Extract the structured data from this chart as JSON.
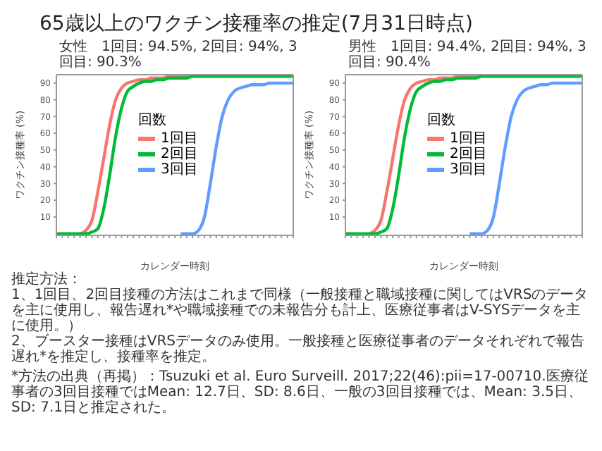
{
  "chart_data": [
    {
      "type": "other",
      "title": "65歳以上のワクチン接種率の推定(7月31日時点)"
    },
    {
      "type": "line",
      "title": "女性　1回目: 94.5%, 2回目: 94%, 3回目: 90.3%",
      "xlabel": "カレンダー時刻",
      "ylabel": "ワクチン接種率 (%)",
      "legend_title": "回数",
      "legend": "top left",
      "grid": false,
      "marker": "none",
      "line_style": "solid",
      "categories": [
        null,
        null,
        null,
        null,
        null,
        null,
        null,
        null,
        null,
        null,
        null,
        null,
        null,
        null,
        null,
        null,
        null,
        null,
        null,
        null,
        null,
        null,
        null,
        null,
        null,
        null,
        null,
        null,
        null,
        null,
        null,
        null,
        null,
        null,
        null,
        null,
        null,
        null,
        null,
        null,
        null
      ],
      "ylim": [
        -1,
        95
      ],
      "yticks": [
        10,
        20,
        30,
        40,
        50,
        60,
        70,
        80,
        90
      ],
      "series": [
        {
          "name": "1回目",
          "color": "#f8766d",
          "values": [
            null,
            null,
            null,
            null,
            0,
            2,
            8,
            25,
            45,
            65,
            80,
            87,
            90,
            91,
            92,
            92,
            93,
            93,
            93,
            94,
            94,
            94,
            94,
            94,
            null,
            null,
            null,
            null,
            null,
            null,
            null,
            null,
            null,
            null,
            null,
            null,
            null,
            null,
            null,
            null,
            null
          ]
        },
        {
          "name": "2回目",
          "color": "#00ba38",
          "values": [
            0,
            0,
            0,
            0,
            0,
            0,
            1,
            3,
            15,
            35,
            58,
            75,
            85,
            88,
            90,
            91,
            91,
            92,
            92,
            93,
            93,
            93,
            93,
            94,
            94,
            94,
            94,
            94,
            94,
            94,
            94,
            94,
            94,
            94,
            94,
            94,
            94,
            94,
            94,
            94,
            94
          ]
        },
        {
          "name": "3回目",
          "color": "#619cff",
          "values": [
            null,
            null,
            null,
            null,
            null,
            null,
            null,
            null,
            null,
            null,
            null,
            null,
            null,
            null,
            null,
            null,
            null,
            null,
            null,
            null,
            null,
            0,
            0,
            0,
            2,
            10,
            30,
            52,
            70,
            80,
            85,
            87,
            88,
            89,
            89,
            89,
            90,
            90,
            90,
            90,
            90
          ]
        }
      ]
    },
    {
      "type": "line",
      "title": "男性　1回目: 94.4%, 2回目: 94%, 3回目: 90.4%",
      "xlabel": "カレンダー時刻",
      "ylabel": "ワクチン接種率 (%)",
      "legend_title": "回数",
      "legend": "top left",
      "grid": false,
      "marker": "none",
      "line_style": "solid",
      "categories": [
        null,
        null,
        null,
        null,
        null,
        null,
        null,
        null,
        null,
        null,
        null,
        null,
        null,
        null,
        null,
        null,
        null,
        null,
        null,
        null,
        null,
        null,
        null,
        null,
        null,
        null,
        null,
        null,
        null,
        null,
        null,
        null,
        null,
        null,
        null,
        null,
        null,
        null,
        null,
        null,
        null
      ],
      "ylim": [
        -1,
        95
      ],
      "yticks": [
        10,
        20,
        30,
        40,
        50,
        60,
        70,
        80,
        90
      ],
      "series": [
        {
          "name": "1回目",
          "color": "#f8766d",
          "values": [
            null,
            null,
            null,
            null,
            0,
            2,
            8,
            25,
            45,
            65,
            80,
            87,
            90,
            91,
            92,
            92,
            93,
            93,
            93,
            94,
            94,
            94,
            94,
            94,
            null,
            null,
            null,
            null,
            null,
            null,
            null,
            null,
            null,
            null,
            null,
            null,
            null,
            null,
            null,
            null,
            null
          ]
        },
        {
          "name": "2回目",
          "color": "#00ba38",
          "values": [
            0,
            0,
            0,
            0,
            0,
            0,
            1,
            3,
            15,
            35,
            58,
            75,
            85,
            88,
            90,
            91,
            91,
            92,
            92,
            93,
            93,
            93,
            93,
            94,
            94,
            94,
            94,
            94,
            94,
            94,
            94,
            94,
            94,
            94,
            94,
            94,
            94,
            94,
            94,
            94,
            94
          ]
        },
        {
          "name": "3回目",
          "color": "#619cff",
          "values": [
            null,
            null,
            null,
            null,
            null,
            null,
            null,
            null,
            null,
            null,
            null,
            null,
            null,
            null,
            null,
            null,
            null,
            null,
            null,
            null,
            null,
            0,
            0,
            0,
            2,
            10,
            30,
            52,
            70,
            80,
            85,
            87,
            88,
            89,
            89,
            90,
            90,
            90,
            90,
            90,
            90
          ]
        }
      ]
    },
    {
      "type": "other",
      "annotations": [
        "推定方法：",
        "1、1回目、2回目接種の方法はこれまで同様（一般接種と職域接種に関してはVRSのデータを主に使用し、報告遅れ*や職域接種での未報告分も計上、医療従事者はV-SYSデータを主に使用。）",
        "2、ブースター接種はVRSデータのみ使用。一般接種と医療従事者のデータそれぞれで報告遅れ*を推定し、接種率を推定。",
        "*方法の出典（再掲）：Tsuzuki et al. Euro Surveill. 2017;22(46):pii=17-00710.医療従事者の3回目接種ではMean: 12.7日、SD: 8.6日、一般の3回目接種では、Mean: 3.5日、SD: 7.1日と推定された。"
      ]
    }
  ]
}
